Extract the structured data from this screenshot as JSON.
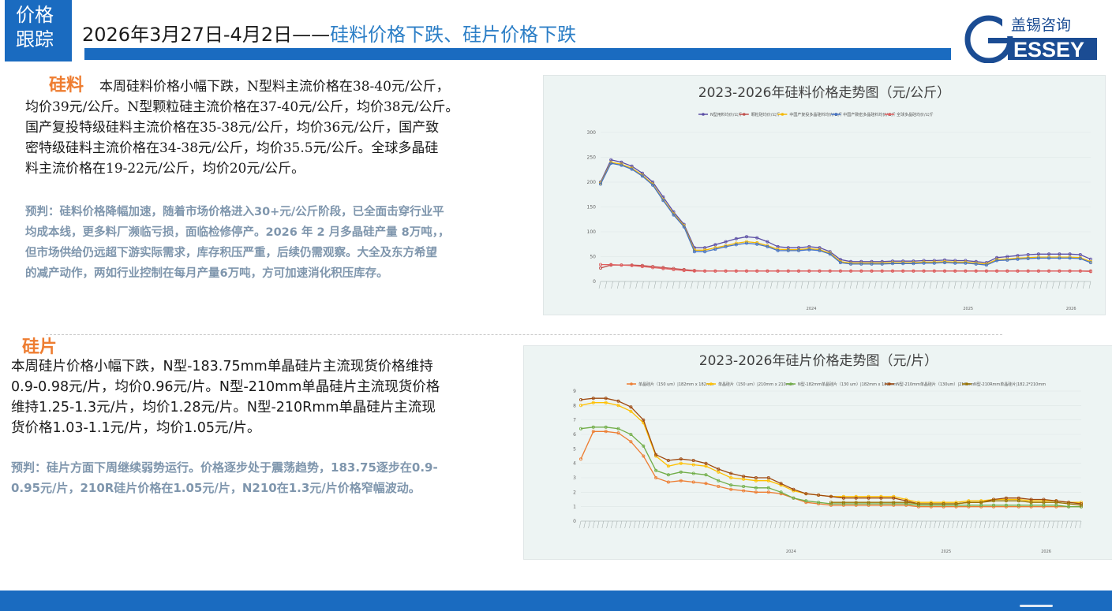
{
  "header": {
    "tag_line1": "价格",
    "tag_line2": "跟踪",
    "title_date": "2026年3月27日-4月2日——",
    "title_highlight": "硅料价格下跌、硅片价格下跌"
  },
  "logo": {
    "cn": "盖锡咨询",
    "en": "ESSEY",
    "letter": "G"
  },
  "silicon_material": {
    "heading": "硅料",
    "body_lines": [
      "本周硅料价格小幅下跌，N型料主流价格在38-40元/公斤，",
      "均价39元/公斤。N型颗粒硅主流价格在37-40元/公斤，均价38元/公斤。",
      "国产复投特级硅料主流价格在35-38元/公斤，均价36元/公斤，国产致",
      "密特级硅料主流价格在34-38元/公斤，均价35.5元/公斤。全球多晶硅",
      "料主流价格在19-22元/公斤，均价20元/公斤。"
    ],
    "forecast_lines": [
      "预判：硅料价格降幅加速，随着市场价格进入30+元/公斤阶段，已全面击穿行业平",
      "均成本线，更多料厂濒临亏损，面临检修停产。2026 年 2 月多晶硅产量 8万吨，，",
      "但市场供给仍远超下游实际需求，库存积压严重，后续仍需观察。大全及东方希望",
      "的减产动作，两如行业控制在每月产量6万吨，方可加速消化积压库存。"
    ]
  },
  "wafer": {
    "heading": "硅片",
    "body_lines": [
      "本周硅片价格小幅下跌，N型-183.75mm单晶硅片主流现货价格维持",
      "0.9-0.98元/片，均价0.96元/片。N型-210mm单晶硅片主流现货价格",
      "维持1.25-1.3元/片，均价1.28元/片。N型-210Rmm单晶硅片主流现",
      "货价格1.03-1.1元/片，均价1.05元/片。"
    ],
    "forecast_lines": [
      "预判：硅片方面下周继续弱势运行。价格逐步处于震荡趋势，183.75逐步在0.9-",
      "0.95元/片，210R硅片价格在1.05元/片，N210在1.3元/片价格窄幅波动。"
    ]
  },
  "chart_data": [
    {
      "type": "line",
      "title": "2023-2026年硅料价格走势图（元/公斤）",
      "ylim": [
        0,
        300
      ],
      "yticks": [
        "0",
        "50",
        "100",
        "150",
        "200",
        "250",
        "300"
      ],
      "year_labels": [
        "2024",
        "2025",
        "2026"
      ],
      "legend_position": "top",
      "grid": true,
      "series": [
        {
          "name": "N型用料均价/公斤",
          "color": "#5b4ea5",
          "values": [
            200,
            245,
            240,
            232,
            218,
            200,
            170,
            140,
            115,
            68,
            68,
            74,
            80,
            86,
            90,
            88,
            80,
            70,
            68,
            68,
            70,
            68,
            60,
            44,
            40,
            40,
            40,
            40,
            41,
            41,
            41,
            42,
            42,
            43,
            42,
            42,
            40,
            38,
            48,
            50,
            52,
            54,
            55,
            55,
            55,
            55,
            54,
            45
          ]
        },
        {
          "name": "颗粒硅均价/公斤",
          "color": "#c0504d",
          "values": [
            27,
            33,
            33,
            33,
            32,
            30,
            28,
            26,
            24,
            22,
            21,
            21,
            21,
            21,
            21,
            21,
            21,
            21,
            21,
            21,
            21,
            21,
            21,
            21,
            21,
            21,
            21,
            21,
            21,
            21,
            21,
            21,
            21,
            21,
            21,
            21,
            21,
            21,
            21,
            21,
            21,
            21,
            21,
            21,
            21,
            21,
            21,
            21
          ]
        },
        {
          "name": "中国产复投多晶硅料均价/公斤",
          "color": "#f5b800",
          "values": [
            198,
            240,
            236,
            228,
            214,
            196,
            165,
            136,
            112,
            63,
            63,
            68,
            72,
            77,
            80,
            78,
            72,
            65,
            64,
            64,
            66,
            64,
            57,
            40,
            37,
            37,
            37,
            37,
            38,
            38,
            38,
            39,
            39,
            40,
            39,
            39,
            37,
            35,
            44,
            45,
            47,
            48,
            49,
            49,
            49,
            49,
            48,
            40
          ]
        },
        {
          "name": "中国产致密多晶硅料均价/公斤",
          "color": "#4472c4",
          "values": [
            196,
            238,
            234,
            226,
            212,
            194,
            163,
            134,
            110,
            60,
            60,
            65,
            70,
            74,
            77,
            75,
            70,
            62,
            62,
            62,
            64,
            62,
            55,
            38,
            35,
            35,
            35,
            35,
            36,
            36,
            36,
            37,
            37,
            38,
            37,
            37,
            35,
            33,
            42,
            43,
            45,
            46,
            47,
            47,
            47,
            47,
            46,
            38
          ]
        },
        {
          "name": "全球多晶硅均价/公斤",
          "color": "#e06060",
          "values": [
            34,
            34,
            33,
            32,
            30,
            28,
            26,
            24,
            22,
            21,
            21,
            21,
            21,
            21,
            21,
            21,
            21,
            21,
            21,
            21,
            21,
            21,
            21,
            21,
            21,
            21,
            21,
            21,
            21,
            21,
            21,
            21,
            21,
            21,
            21,
            21,
            21,
            21,
            21,
            21,
            21,
            21,
            21,
            21,
            21,
            21,
            21,
            20
          ]
        }
      ]
    },
    {
      "type": "line",
      "title": "2023-2026年硅片价格走势图（元/片）",
      "ylim": [
        0,
        9
      ],
      "yticks": [
        "0",
        "1",
        "2",
        "3",
        "4",
        "5",
        "6",
        "7",
        "8",
        "9"
      ],
      "year_labels": [
        "2024",
        "2025",
        "2026"
      ],
      "legend_position": "top",
      "grid": true,
      "series": [
        {
          "name": "单晶硅片（150 um）|182mm x 182mm",
          "color": "#ed7d31",
          "values": [
            4.3,
            6.2,
            6.2,
            6.1,
            5.5,
            4.5,
            3.0,
            2.7,
            2.8,
            2.7,
            2.6,
            2.4,
            2.2,
            2.1,
            2.0,
            2.0,
            1.9,
            1.6,
            1.3,
            1.2,
            1.1,
            1.1,
            1.1,
            1.1,
            1.1,
            1.1,
            1.1,
            1.0,
            1.0,
            1.0,
            1.0,
            1.0,
            1.0,
            1.0,
            1.0,
            1.0,
            1.0,
            1.0,
            1.0,
            1.0,
            1.0
          ]
        },
        {
          "name": "单晶硅片（150 um）|210mm x 210mm",
          "color": "#ffc000",
          "values": [
            8.0,
            8.2,
            8.2,
            8.0,
            7.6,
            6.8,
            4.5,
            3.8,
            4.0,
            3.9,
            3.8,
            3.4,
            3.0,
            2.9,
            2.8,
            2.8,
            2.5,
            2.1,
            1.9,
            1.8,
            1.7,
            1.7,
            1.7,
            1.7,
            1.7,
            1.7,
            1.5,
            1.3,
            1.3,
            1.3,
            1.3,
            1.4,
            1.4,
            1.5,
            1.5,
            1.5,
            1.4,
            1.4,
            1.4,
            1.3,
            1.3
          ]
        },
        {
          "name": "N型-182mm单晶硅片（130 um）|182mm x 182mm",
          "color": "#70ad47",
          "values": [
            6.4,
            6.5,
            6.5,
            6.4,
            6.0,
            5.2,
            3.5,
            3.2,
            3.4,
            3.3,
            3.2,
            2.8,
            2.5,
            2.4,
            2.3,
            2.3,
            2.0,
            1.6,
            1.4,
            1.3,
            1.2,
            1.2,
            1.2,
            1.2,
            1.2,
            1.2,
            1.2,
            1.1,
            1.1,
            1.1,
            1.1,
            1.1,
            1.1,
            1.1,
            1.1,
            1.1,
            1.1,
            1.1,
            1.1,
            1.0,
            1.0
          ]
        },
        {
          "name": "N型-210mm单晶硅片（130um）|210mm",
          "color": "#9e480e",
          "values": [
            8.4,
            8.5,
            8.5,
            8.3,
            7.9,
            7.0,
            4.6,
            4.2,
            4.3,
            4.2,
            4.0,
            3.6,
            3.3,
            3.1,
            3.0,
            3.0,
            2.6,
            2.2,
            1.9,
            1.8,
            1.7,
            1.6,
            1.6,
            1.6,
            1.6,
            1.6,
            1.4,
            1.2,
            1.2,
            1.2,
            1.2,
            1.3,
            1.3,
            1.5,
            1.6,
            1.6,
            1.5,
            1.5,
            1.4,
            1.3,
            1.2
          ]
        },
        {
          "name": "N型-210Rmm单晶硅片|182.2*210mm",
          "color": "#997300",
          "values": [
            null,
            null,
            null,
            null,
            null,
            null,
            null,
            null,
            null,
            null,
            null,
            null,
            null,
            null,
            null,
            null,
            null,
            null,
            null,
            null,
            1.3,
            1.3,
            1.3,
            1.3,
            1.3,
            1.3,
            1.3,
            1.2,
            1.2,
            1.2,
            1.2,
            1.3,
            1.3,
            1.4,
            1.4,
            1.4,
            1.3,
            1.3,
            1.3,
            1.2,
            1.1
          ]
        }
      ]
    }
  ]
}
